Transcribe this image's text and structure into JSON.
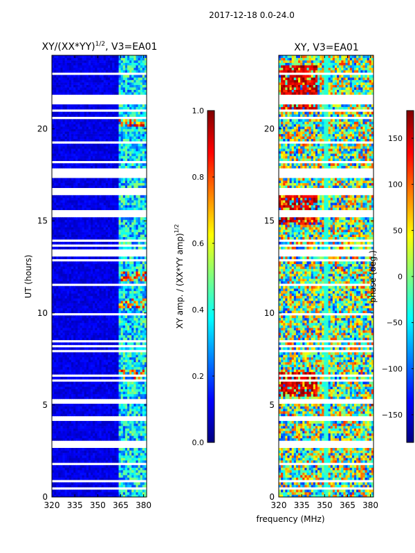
{
  "figure": {
    "suptitle": "2017-12-18 0.0-24.0",
    "shared_xlabel": "frequency (MHz)"
  },
  "colors": {
    "jet": [
      "#00007f",
      "#0000ff",
      "#007fff",
      "#00ffff",
      "#7fff7f",
      "#ffff00",
      "#ff7f00",
      "#ff0000",
      "#7f0000"
    ],
    "axis": "#000000",
    "background": "#ffffff"
  },
  "chart_data": [
    {
      "type": "heatmap",
      "title": "XY/(XX*YY)",
      "title_sup": "1/2",
      "title_suffix": ", V3=EA01",
      "xlabel": "",
      "ylabel": "UT (hours)",
      "xlim": [
        320,
        382
      ],
      "ylim": [
        0,
        24
      ],
      "x_ticks": [
        320,
        335,
        350,
        365,
        380
      ],
      "y_ticks": [
        0,
        5,
        10,
        15,
        20
      ],
      "value_range": [
        0.0,
        1.0
      ],
      "features": {
        "background_value": 0.1,
        "bright_band_mhz": [
          363,
          383
        ],
        "bright_value": 0.3,
        "hot_rows_ut": [
          6.7,
          10.5,
          12.0,
          20.4
        ]
      },
      "colorbar": {
        "label": "XY amp. / (XX*YY amp)",
        "label_sup": "1/2",
        "ticks": [
          0.0,
          0.2,
          0.4,
          0.6,
          0.8,
          1.0
        ],
        "tick_labels": [
          "0.0",
          "0.2",
          "0.4",
          "0.6",
          "0.8",
          "1.0"
        ]
      }
    },
    {
      "type": "heatmap",
      "title": "XY, V3=EA01",
      "xlabel": "",
      "ylabel": "",
      "xlim": [
        320,
        382
      ],
      "ylim": [
        0,
        24
      ],
      "x_ticks": [
        320,
        335,
        350,
        365,
        380
      ],
      "y_ticks": [
        0,
        5,
        10,
        15,
        20
      ],
      "value_range": [
        -180,
        180
      ],
      "features": {
        "red_regions": [
          {
            "mhz": [
              322,
              345
            ],
            "ut": [
              21,
              23.5
            ]
          },
          {
            "mhz": [
              320,
              345
            ],
            "ut": [
              14.8,
              16.5
            ]
          },
          {
            "mhz": [
              320,
              345
            ],
            "ut": [
              5.5,
              6.8
            ]
          }
        ],
        "cyan_column_mhz": [
          350,
          352
        ]
      },
      "colorbar": {
        "label": "phase (deg.)",
        "ticks": [
          -150,
          -100,
          -50,
          0,
          50,
          100,
          150
        ],
        "tick_labels": [
          "−150",
          "−100",
          "−50",
          "0",
          "50",
          "100",
          "150"
        ]
      }
    }
  ]
}
